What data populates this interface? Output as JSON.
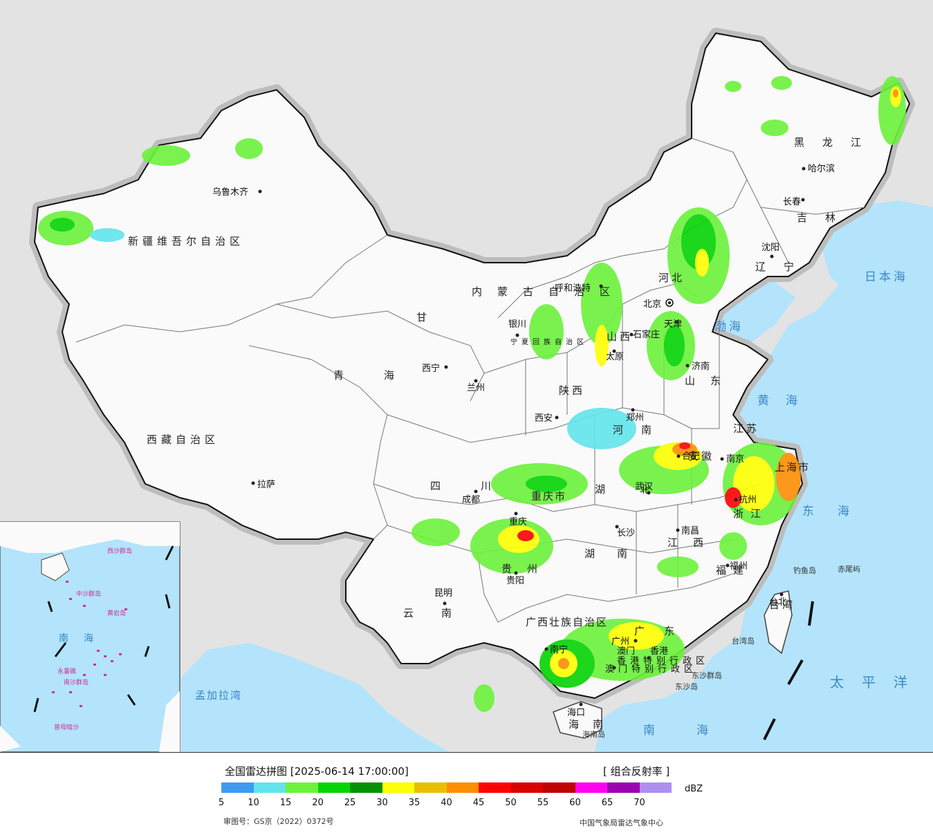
{
  "map": {
    "provinces": {
      "xinjiang": "新疆维吾尔自治区",
      "xizang": "西藏自治区",
      "qinghai": "青海",
      "gansu": "甘",
      "sichuan": "四川",
      "yunnan": "云南",
      "guizhou": "贵州",
      "guangxi": "广西壮族自治区",
      "guangdong": "广东",
      "hainan": "海南",
      "fujian": "福建",
      "jiangxi": "江西",
      "hunan": "湖南",
      "hubei": "湖北",
      "henan": "河南",
      "shandong": "山东",
      "shanxi": "山西",
      "shaanxi": "陕西",
      "neimenggu": "内蒙古自治区",
      "heilongjiang": "黑龙江",
      "jilin": "吉林",
      "liaoning": "辽宁",
      "hebei": "河北",
      "anhui": "安徽",
      "jiangsu": "江苏",
      "zhejiang": "浙江",
      "taiwan": "台湾",
      "ningxia": "宁夏回族自治区",
      "chongqing": "重庆市",
      "shanghai": "上海市",
      "hongkong": "香港特别行政区",
      "macao": "澳门特别行政区"
    },
    "cities": {
      "urumqi": "乌鲁木齐",
      "lhasa": "拉萨",
      "xining": "西宁",
      "lanzhou": "兰州",
      "yinchuan": "银川",
      "huhehaote": "呼和浩特",
      "beijing": "北京",
      "tianjin": "天津",
      "shijiazhuang": "石家庄",
      "taiyuan": "太原",
      "jinan": "济南",
      "zhengzhou": "郑州",
      "xian": "西安",
      "chengdu": "成都",
      "chongqing": "重庆",
      "guiyang": "贵阳",
      "kunming": "昆明",
      "nanning": "南宁",
      "guangzhou": "广州",
      "haikou": "海口",
      "changsha": "长沙",
      "wuhan": "武汉",
      "nanchang": "南昌",
      "fuzhou": "福州",
      "hangzhou": "杭州",
      "nanjing": "南京",
      "hefei": "合肥",
      "shenyang": "沈阳",
      "changchun": "长春",
      "haerbin": "哈尔滨",
      "taibei": "台北",
      "xianggang": "香港",
      "aomen": "澳门"
    },
    "seas": {
      "japan_sea": "日本海",
      "bohai": "渤海",
      "yellow_sea": "黄海",
      "east_sea": "东海",
      "pacific": "太平洋",
      "south_sea": "南海",
      "bengal": "孟加拉湾"
    },
    "islands": {
      "diaoyu": "钓鱼岛",
      "chiwei": "赤尾屿",
      "taiwan_island": "台湾岛",
      "dongsha_group": "东沙群岛",
      "dongsha": "东沙岛",
      "hainan_island": "海南岛",
      "xisha": "西沙群岛",
      "zhongsha": "中沙群岛",
      "huangyan": "黄岩岛",
      "nansha": "南沙群岛",
      "yongshu": "永暑礁",
      "zengmu": "曾母暗沙"
    }
  },
  "legend": {
    "title": "全国雷达拼图 [2025-06-14 17:00:00]",
    "product": "[ 组合反射率 ]",
    "unit": "dBZ",
    "colors": [
      "#3d9bf2",
      "#62e4ec",
      "#6cf23c",
      "#05d403",
      "#029102",
      "#ffff03",
      "#e8c003",
      "#fd8e03",
      "#fd0202",
      "#d70202",
      "#c00202",
      "#fd03f0",
      "#9a02b2",
      "#ae8ff0"
    ],
    "ticks": [
      "5",
      "10",
      "15",
      "20",
      "25",
      "30",
      "35",
      "40",
      "45",
      "50",
      "55",
      "60",
      "65",
      "70"
    ],
    "approval": "审图号：GS京（2022）0372号",
    "source": "中国气象局雷达气象中心"
  }
}
